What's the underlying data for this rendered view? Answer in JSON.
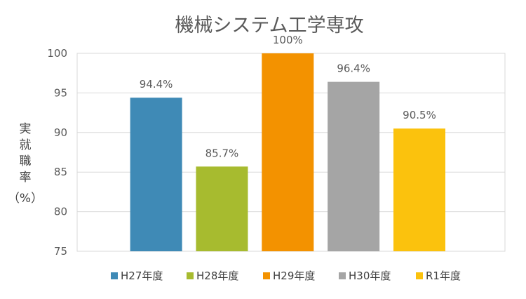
{
  "chart_data": {
    "type": "bar",
    "title": "機械システム工学専攻",
    "ylabel_chars": [
      "実",
      "就",
      "職",
      "率"
    ],
    "ylabel_unit": "（%）",
    "xlabel": "",
    "ylim": [
      75,
      100
    ],
    "yticks": [
      75,
      80,
      85,
      90,
      95,
      100
    ],
    "grid": true,
    "legend_position": "bottom",
    "categories": [
      "H27年度",
      "H28年度",
      "H29年度",
      "H30年度",
      "R1年度"
    ],
    "values": [
      94.4,
      85.7,
      100,
      96.4,
      90.5
    ],
    "data_labels": [
      "94.4%",
      "85.7%",
      "100%",
      "96.4%",
      "90.5%"
    ],
    "colors": [
      "#3f8ab6",
      "#a7bb2f",
      "#f39200",
      "#a5a5a5",
      "#fbc20d"
    ]
  }
}
